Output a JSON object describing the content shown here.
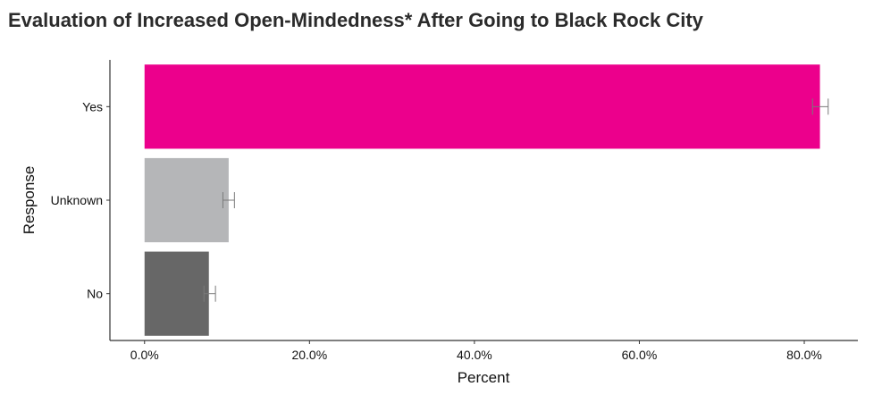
{
  "chart_data": {
    "type": "bar",
    "orientation": "horizontal",
    "title": "Evaluation of Increased Open-Mindedness* After Going to Black Rock City",
    "xlabel": "Percent",
    "ylabel": "Response",
    "categories": [
      "Yes",
      "Unknown",
      "No"
    ],
    "values": [
      81.9,
      10.2,
      7.8
    ],
    "error_low": [
      81.0,
      9.5,
      7.2
    ],
    "error_high": [
      82.9,
      10.9,
      8.6
    ],
    "colors": [
      "#EC008C",
      "#B5B6B8",
      "#676767"
    ],
    "xlim": [
      -4.2,
      86.5
    ],
    "xticks": [
      0,
      20,
      40,
      60,
      80
    ],
    "xtick_labels": [
      "0.0%",
      "20.0%",
      "40.0%",
      "60.0%",
      "80.0%"
    ],
    "grid": false,
    "error_bars": true
  }
}
